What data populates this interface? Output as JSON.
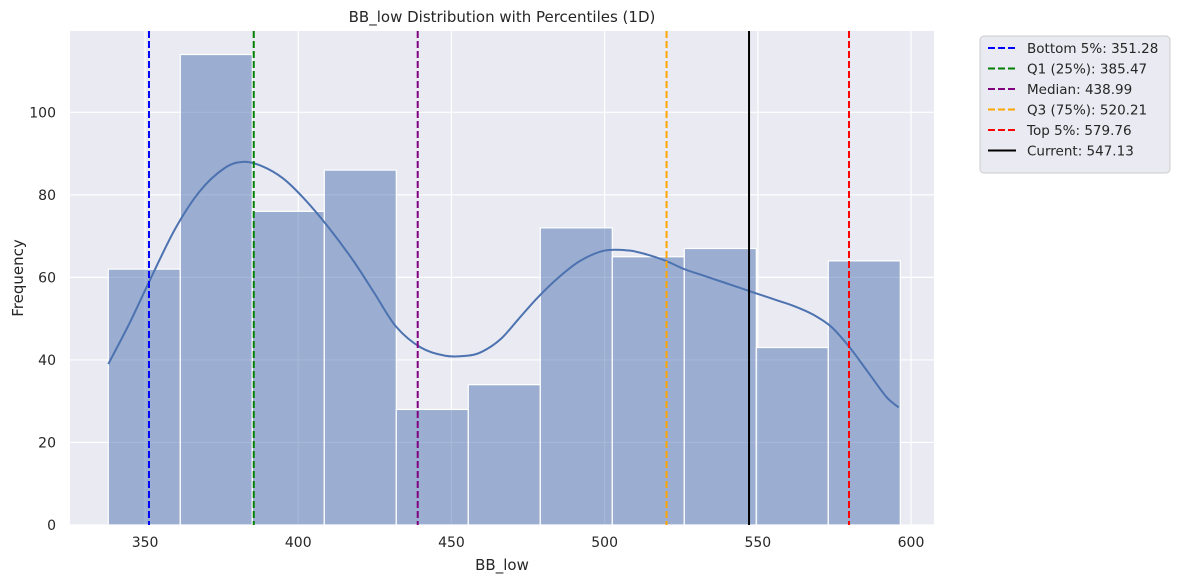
{
  "chart_data": {
    "type": "bar",
    "title": "BB_low Distribution with Percentiles (1D)",
    "xlabel": "BB_low",
    "ylabel": "Frequency",
    "xlim": [
      325.5,
      607.5
    ],
    "ylim": [
      0,
      119.7
    ],
    "xticks": [
      350,
      400,
      450,
      500,
      550,
      600
    ],
    "yticks": [
      0,
      20,
      40,
      60,
      80,
      100
    ],
    "grid": true,
    "bins": [
      {
        "x0": 338.0,
        "x1": 361.5,
        "count": 62
      },
      {
        "x0": 361.5,
        "x1": 385.0,
        "count": 114
      },
      {
        "x0": 385.0,
        "x1": 408.5,
        "count": 76
      },
      {
        "x0": 408.5,
        "x1": 432.0,
        "count": 86
      },
      {
        "x0": 432.0,
        "x1": 455.5,
        "count": 28
      },
      {
        "x0": 455.5,
        "x1": 479.0,
        "count": 34
      },
      {
        "x0": 479.0,
        "x1": 502.5,
        "count": 72
      },
      {
        "x0": 502.5,
        "x1": 526.0,
        "count": 65
      },
      {
        "x0": 526.0,
        "x1": 549.5,
        "count": 67
      },
      {
        "x0": 549.5,
        "x1": 573.0,
        "count": 43
      },
      {
        "x0": 573.0,
        "x1": 596.5,
        "count": 64
      }
    ],
    "kde": {
      "x": [
        338,
        345,
        352,
        360,
        368,
        376,
        382,
        388,
        395,
        402,
        410,
        418,
        425,
        432,
        440,
        448,
        455,
        460,
        466,
        472,
        478,
        485,
        492,
        500,
        508,
        514,
        520,
        526,
        532,
        538,
        544,
        550,
        556,
        562,
        568,
        574,
        580,
        586,
        592,
        596
      ],
      "y": [
        39,
        49,
        60,
        72,
        81,
        86.5,
        88,
        87,
        84,
        79,
        72,
        64,
        56,
        48,
        43,
        41,
        41,
        42,
        45,
        50,
        55,
        60,
        64,
        66.5,
        66.5,
        65.5,
        64,
        62,
        60.5,
        59,
        57.5,
        56,
        54.5,
        53,
        51,
        48,
        43,
        37,
        31,
        28.5
      ]
    },
    "lines": [
      {
        "name": "Bottom 5%: 351.28",
        "value": 351.28,
        "color": "#0000ff",
        "dashed": true
      },
      {
        "name": "Q1 (25%): 385.47",
        "value": 385.47,
        "color": "#008000",
        "dashed": true
      },
      {
        "name": "Median: 438.99",
        "value": 438.99,
        "color": "#800080",
        "dashed": true
      },
      {
        "name": "Q3 (75%): 520.21",
        "value": 520.21,
        "color": "#ffa500",
        "dashed": true
      },
      {
        "name": "Top 5%: 579.76",
        "value": 579.76,
        "color": "#ff0000",
        "dashed": true
      },
      {
        "name": "Current: 547.13",
        "value": 547.13,
        "color": "#000000",
        "dashed": false
      }
    ],
    "legend_position": "outside-top-right",
    "colors": {
      "background": "#eaeaf2",
      "bar_fill": "#4c72b0",
      "kde_line": "#4c72b0",
      "grid": "#ffffff"
    }
  }
}
